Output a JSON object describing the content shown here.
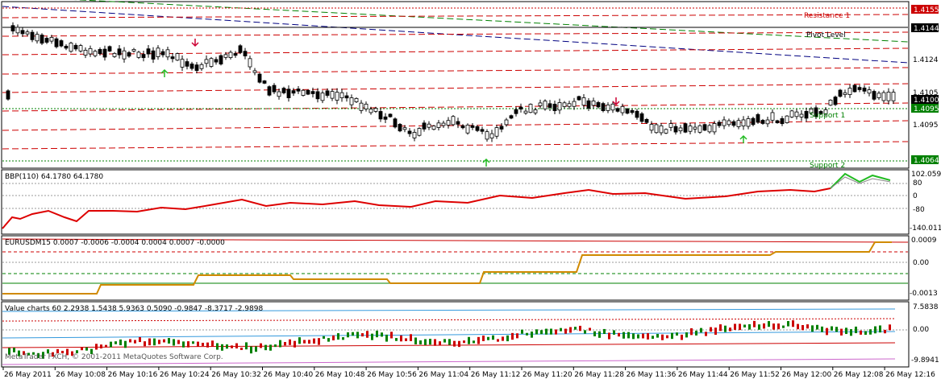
{
  "main": {
    "levels": {
      "resistance1_label": "Resistance 1",
      "pivot_label": "Pivot Level",
      "support1_label": "Support 1",
      "support2_label": "Support 2"
    },
    "price_axis": [
      "1.4155",
      "1.4144",
      "1.4124",
      "1.4105",
      "1.4100",
      "1.4095",
      "1.4064"
    ],
    "price_badges": {
      "resistance1": "1.4155",
      "pivot": "1.4144",
      "current": "1.4100",
      "support1": "1.4095",
      "support2": "1.4064"
    }
  },
  "indicator_bbp": {
    "title": "BBP(110) 64.1780 64.1780",
    "axis": [
      "102.0590",
      "80",
      "0",
      "-80",
      "-140.011"
    ]
  },
  "indicator_eurusd": {
    "title": "EURUSDM15 0.0007 -0.0006 -0.0004 0.0004 0.0007 -0.0000",
    "axis": [
      "0.0009",
      "0.00",
      "-0.0013"
    ]
  },
  "indicator_value": {
    "title": "Value charts 60 2.2938 1.5438 5.9363 0.5090 -0.9847 -8.3717 -2.9898",
    "axis": [
      "7.5838",
      "0.00",
      "-9.8941"
    ]
  },
  "copyright": "MetaTrader FXCH, © 2001-2011 MetaQuotes Software Corp.",
  "time_axis": [
    "26 May 2011",
    "26 May 10:08",
    "26 May 10:16",
    "26 May 10:24",
    "26 May 10:32",
    "26 May 10:40",
    "26 May 10:48",
    "26 May 10:56",
    "26 May 11:04",
    "26 May 11:12",
    "26 May 11:20",
    "26 May 11:28",
    "26 May 11:36",
    "26 May 11:44",
    "26 May 11:52",
    "26 May 12:00",
    "26 May 12:08",
    "26 May 12:16"
  ],
  "colors": {
    "resistance_line": "#cc0000",
    "pivot_line": "#000000",
    "support_line": "#008000",
    "channel_red": "#cc0000",
    "channel_blue": "#000080",
    "channel_green": "#008000",
    "bbp_line": "#dd0000",
    "bbp_up": "#22bb22",
    "value_bullish": "#008000",
    "value_bearish": "#cc0000",
    "badge_pivot": "#000000",
    "badge_resistance": "#cc0000",
    "badge_support": "#008000"
  }
}
